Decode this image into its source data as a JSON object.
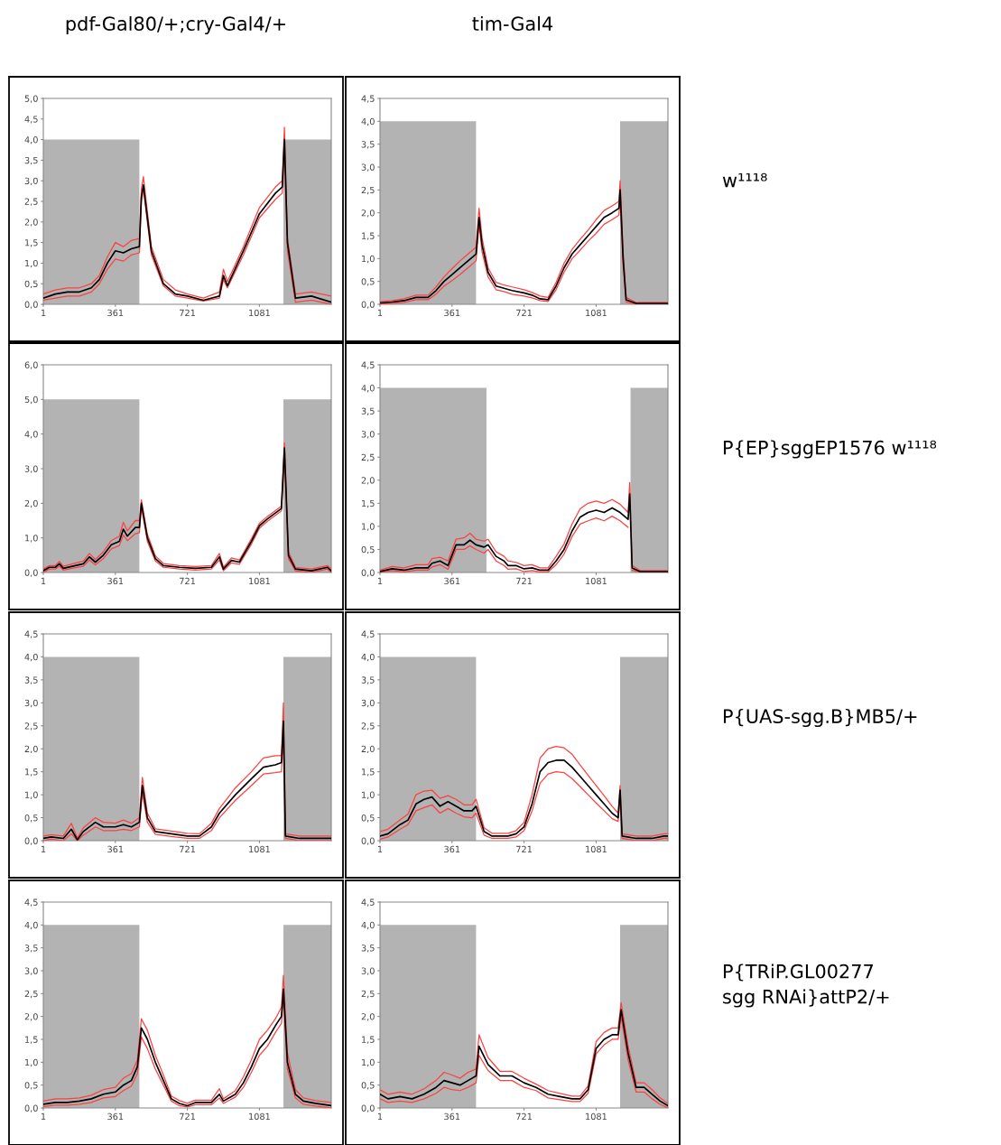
{
  "chart_data": [
    {
      "type": "line",
      "title": "pdf-Gal80/+;cry-Gal4/+",
      "xlim": [
        1,
        1440
      ],
      "xticks": [
        1,
        361,
        721,
        1081
      ],
      "ylim": [
        0,
        5
      ],
      "yticks": [
        {
          "value": 0,
          "label": "0,0"
        },
        {
          "value": 0.5,
          "label": "0,5"
        },
        {
          "value": 1,
          "label": "1,0"
        },
        {
          "value": 1.5,
          "label": "1,5"
        },
        {
          "value": 2,
          "label": "2,0"
        },
        {
          "value": 2.5,
          "label": "2,5"
        },
        {
          "value": 3,
          "label": "3,0"
        },
        {
          "value": 3.5,
          "label": "3,5"
        },
        {
          "value": 4,
          "label": "4,0"
        },
        {
          "value": 4.5,
          "label": "4,5"
        },
        {
          "value": 5,
          "label": "5,0"
        }
      ],
      "x": [
        1,
        61,
        121,
        181,
        241,
        281,
        321,
        361,
        401,
        441,
        481,
        491,
        501,
        541,
        601,
        661,
        721,
        801,
        881,
        901,
        921,
        1001,
        1081,
        1161,
        1195,
        1206,
        1221,
        1261,
        1341,
        1440
      ],
      "series": [
        {
          "type": "area",
          "color": "#b3b3b3",
          "x": [
            1,
            481
          ],
          "values": [
            4,
            4
          ]
        },
        {
          "type": "area",
          "color": "#b3b3b3",
          "x": [
            1201,
            1440
          ],
          "values": [
            4,
            4
          ]
        },
        {
          "color": "#ff4040",
          "values": [
            0.25,
            0.35,
            0.4,
            0.4,
            0.5,
            0.7,
            1.15,
            1.5,
            1.4,
            1.55,
            1.6,
            2.8,
            3.1,
            1.4,
            0.6,
            0.35,
            0.25,
            0.15,
            0.3,
            0.85,
            0.55,
            1.4,
            2.35,
            2.85,
            3.0,
            4.3,
            1.6,
            0.25,
            0.3,
            0.2
          ]
        },
        {
          "color": "#ff4040",
          "values": [
            0.1,
            0.15,
            0.2,
            0.2,
            0.3,
            0.5,
            0.85,
            1.1,
            1.05,
            1.2,
            1.25,
            2.5,
            2.8,
            1.2,
            0.45,
            0.2,
            0.15,
            0.08,
            0.15,
            0.6,
            0.4,
            1.2,
            2.1,
            2.55,
            2.7,
            3.9,
            1.3,
            0.05,
            0.1,
            0.0
          ]
        },
        {
          "color": "#000000",
          "values": [
            0.15,
            0.25,
            0.3,
            0.3,
            0.4,
            0.6,
            1.0,
            1.3,
            1.25,
            1.35,
            1.4,
            2.6,
            2.9,
            1.3,
            0.5,
            0.25,
            0.2,
            0.1,
            0.2,
            0.7,
            0.45,
            1.3,
            2.2,
            2.7,
            2.85,
            4.0,
            1.5,
            0.15,
            0.2,
            0.05
          ]
        }
      ]
    },
    {
      "type": "line",
      "title": "tim-Gal4",
      "annotations": [
        "w¹¹¹⁸"
      ],
      "xlim": [
        1,
        1440
      ],
      "xticks": [
        1,
        361,
        721,
        1081
      ],
      "ylim": [
        0,
        4.5
      ],
      "yticks": [
        {
          "value": 0,
          "label": "0,0"
        },
        {
          "value": 0.5,
          "label": "0,5"
        },
        {
          "value": 1,
          "label": "1,0"
        },
        {
          "value": 1.5,
          "label": "1,5"
        },
        {
          "value": 2,
          "label": "2,0"
        },
        {
          "value": 2.5,
          "label": "2,5"
        },
        {
          "value": 3,
          "label": "3,0"
        },
        {
          "value": 3.5,
          "label": "3,5"
        },
        {
          "value": 4,
          "label": "4,0"
        },
        {
          "value": 4.5,
          "label": "4,5"
        }
      ],
      "x": [
        1,
        61,
        121,
        181,
        241,
        281,
        321,
        361,
        401,
        441,
        481,
        496,
        511,
        541,
        581,
        621,
        661,
        721,
        761,
        801,
        841,
        881,
        921,
        961,
        1001,
        1041,
        1081,
        1121,
        1161,
        1195,
        1201,
        1216,
        1231,
        1281,
        1361,
        1440
      ],
      "series": [
        {
          "type": "area",
          "color": "#b3b3b3",
          "x": [
            1,
            481
          ],
          "values": [
            4,
            4
          ]
        },
        {
          "type": "area",
          "color": "#b3b3b3",
          "x": [
            1201,
            1440
          ],
          "values": [
            4,
            4
          ]
        },
        {
          "color": "#ff4040",
          "values": [
            0.06,
            0.08,
            0.12,
            0.2,
            0.2,
            0.38,
            0.6,
            0.78,
            0.95,
            1.1,
            1.25,
            2.1,
            1.45,
            0.8,
            0.48,
            0.42,
            0.38,
            0.32,
            0.26,
            0.18,
            0.15,
            0.48,
            0.9,
            1.2,
            1.42,
            1.62,
            1.85,
            2.05,
            2.15,
            2.25,
            2.7,
            1.15,
            0.15,
            0.04,
            0.04,
            0.04
          ]
        },
        {
          "color": "#ff4040",
          "values": [
            0.0,
            0.02,
            0.04,
            0.1,
            0.1,
            0.22,
            0.4,
            0.52,
            0.65,
            0.8,
            0.95,
            1.75,
            1.15,
            0.6,
            0.32,
            0.28,
            0.22,
            0.18,
            0.14,
            0.08,
            0.06,
            0.32,
            0.7,
            1.0,
            1.18,
            1.38,
            1.55,
            1.75,
            1.85,
            1.95,
            2.3,
            0.85,
            0.05,
            0.0,
            0.0,
            0.0
          ]
        },
        {
          "color": "#000000",
          "values": [
            0.03,
            0.05,
            0.08,
            0.15,
            0.15,
            0.3,
            0.5,
            0.65,
            0.8,
            0.95,
            1.1,
            1.9,
            1.3,
            0.7,
            0.4,
            0.35,
            0.3,
            0.25,
            0.2,
            0.12,
            0.1,
            0.4,
            0.8,
            1.1,
            1.3,
            1.5,
            1.7,
            1.9,
            2.0,
            2.1,
            2.5,
            1.0,
            0.1,
            0.02,
            0.02,
            0.02
          ]
        }
      ]
    },
    {
      "type": "line",
      "xlim": [
        1,
        1440
      ],
      "xticks": [
        1,
        361,
        721,
        1081
      ],
      "ylim": [
        0,
        6
      ],
      "yticks": [
        {
          "value": 0,
          "label": "0,0"
        },
        {
          "value": 1,
          "label": "1,0"
        },
        {
          "value": 2,
          "label": "2,0"
        },
        {
          "value": 3,
          "label": "3,0"
        },
        {
          "value": 4,
          "label": "4,0"
        },
        {
          "value": 5,
          "label": "5,0"
        },
        {
          "value": 6,
          "label": "6,0"
        }
      ],
      "x": [
        1,
        31,
        61,
        81,
        101,
        161,
        201,
        231,
        261,
        301,
        341,
        381,
        401,
        421,
        461,
        481,
        491,
        521,
        561,
        601,
        681,
        761,
        841,
        881,
        901,
        941,
        981,
        1041,
        1081,
        1121,
        1191,
        1206,
        1226,
        1261,
        1341,
        1421,
        1440
      ],
      "series": [
        {
          "type": "area",
          "color": "#b3b3b3",
          "x": [
            1,
            481
          ],
          "values": [
            5,
            5
          ]
        },
        {
          "type": "area",
          "color": "#b3b3b3",
          "x": [
            1201,
            1440
          ],
          "values": [
            5,
            5
          ]
        },
        {
          "color": "#ff4040",
          "values": [
            0.1,
            0.2,
            0.2,
            0.32,
            0.18,
            0.27,
            0.33,
            0.55,
            0.38,
            0.6,
            0.92,
            1.05,
            1.45,
            1.2,
            1.5,
            1.5,
            2.1,
            1.1,
            0.48,
            0.26,
            0.2,
            0.17,
            0.2,
            0.55,
            0.15,
            0.42,
            0.36,
            0.98,
            1.42,
            1.62,
            1.92,
            3.75,
            0.6,
            0.15,
            0.1,
            0.2,
            0.1
          ]
        },
        {
          "color": "#ff4040",
          "values": [
            0.0,
            0.1,
            0.1,
            0.18,
            0.07,
            0.14,
            0.18,
            0.36,
            0.22,
            0.4,
            0.68,
            0.78,
            1.08,
            0.92,
            1.12,
            1.15,
            1.9,
            0.9,
            0.33,
            0.15,
            0.1,
            0.07,
            0.1,
            0.36,
            0.05,
            0.28,
            0.24,
            0.82,
            1.28,
            1.48,
            1.78,
            3.45,
            0.4,
            0.05,
            0.0,
            0.1,
            0.0
          ]
        },
        {
          "color": "#000000",
          "values": [
            0.05,
            0.15,
            0.15,
            0.25,
            0.12,
            0.2,
            0.25,
            0.45,
            0.3,
            0.5,
            0.8,
            0.9,
            1.25,
            1.05,
            1.3,
            1.3,
            2.0,
            1.0,
            0.4,
            0.2,
            0.15,
            0.12,
            0.15,
            0.45,
            0.1,
            0.35,
            0.3,
            0.9,
            1.35,
            1.55,
            1.85,
            3.6,
            0.5,
            0.1,
            0.05,
            0.15,
            0.05
          ]
        }
      ]
    },
    {
      "type": "line",
      "annotations": [
        "P{EP}sggEP1576 w¹¹¹⁸"
      ],
      "xlim": [
        1,
        1440
      ],
      "xticks": [
        1,
        361,
        721,
        1081
      ],
      "ylim": [
        0,
        4.5
      ],
      "yticks": [
        {
          "value": 0,
          "label": "0,0"
        },
        {
          "value": 0.5,
          "label": "0,5"
        },
        {
          "value": 1,
          "label": "1,0"
        },
        {
          "value": 1.5,
          "label": "1,5"
        },
        {
          "value": 2,
          "label": "2,0"
        },
        {
          "value": 2.5,
          "label": "2,5"
        },
        {
          "value": 3,
          "label": "3,0"
        },
        {
          "value": 3.5,
          "label": "3,5"
        },
        {
          "value": 4,
          "label": "4,0"
        },
        {
          "value": 4.5,
          "label": "4,5"
        }
      ],
      "x": [
        1,
        61,
        121,
        181,
        241,
        261,
        301,
        341,
        381,
        421,
        451,
        481,
        521,
        541,
        581,
        621,
        641,
        681,
        721,
        761,
        801,
        841,
        881,
        921,
        961,
        1001,
        1041,
        1081,
        1121,
        1161,
        1201,
        1241,
        1249,
        1261,
        1301,
        1361,
        1440
      ],
      "series": [
        {
          "type": "area",
          "color": "#b3b3b3",
          "x": [
            1,
            533
          ],
          "values": [
            4,
            4
          ]
        },
        {
          "type": "area",
          "color": "#b3b3b3",
          "x": [
            1253,
            1440
          ],
          "values": [
            4,
            4
          ]
        },
        {
          "color": "#ff4040",
          "values": [
            0.05,
            0.13,
            0.1,
            0.17,
            0.17,
            0.3,
            0.33,
            0.25,
            0.72,
            0.75,
            0.85,
            0.72,
            0.68,
            0.72,
            0.45,
            0.35,
            0.25,
            0.22,
            0.15,
            0.17,
            0.1,
            0.1,
            0.35,
            0.62,
            1.05,
            1.38,
            1.5,
            1.55,
            1.5,
            1.58,
            1.48,
            1.3,
            1.95,
            0.15,
            0.04,
            0.04,
            0.04
          ]
        },
        {
          "color": "#ff4040",
          "values": [
            0.0,
            0.04,
            0.01,
            0.05,
            0.05,
            0.12,
            0.17,
            0.07,
            0.5,
            0.5,
            0.58,
            0.5,
            0.42,
            0.5,
            0.25,
            0.15,
            0.07,
            0.08,
            0.02,
            0.04,
            0.01,
            0.01,
            0.17,
            0.4,
            0.78,
            1.05,
            1.12,
            1.18,
            1.12,
            1.22,
            1.12,
            0.98,
            null,
            0.05,
            0.0,
            0.0,
            0.0
          ]
        },
        {
          "color": "#000000",
          "values": [
            0.02,
            0.08,
            0.05,
            0.1,
            0.1,
            0.2,
            0.25,
            0.15,
            0.6,
            0.6,
            0.7,
            0.6,
            0.55,
            0.6,
            0.35,
            0.25,
            0.15,
            0.15,
            0.08,
            0.1,
            0.05,
            0.05,
            0.25,
            0.5,
            0.9,
            1.2,
            1.3,
            1.35,
            1.3,
            1.4,
            1.3,
            1.15,
            1.7,
            0.1,
            0.02,
            0.02,
            0.02
          ]
        }
      ]
    },
    {
      "type": "line",
      "xlim": [
        1,
        1440
      ],
      "xticks": [
        1,
        361,
        721,
        1081
      ],
      "ylim": [
        0,
        4.5
      ],
      "yticks": [
        {
          "value": 0,
          "label": "0,0"
        },
        {
          "value": 0.5,
          "label": "0,5"
        },
        {
          "value": 1,
          "label": "1,0"
        },
        {
          "value": 1.5,
          "label": "1,5"
        },
        {
          "value": 2,
          "label": "2,0"
        },
        {
          "value": 2.5,
          "label": "2,5"
        },
        {
          "value": 3,
          "label": "3,0"
        },
        {
          "value": 3.5,
          "label": "3,5"
        },
        {
          "value": 4,
          "label": "4,0"
        },
        {
          "value": 4.5,
          "label": "4,5"
        }
      ],
      "x": [
        1,
        41,
        101,
        141,
        171,
        201,
        261,
        301,
        361,
        401,
        441,
        481,
        496,
        521,
        561,
        641,
        721,
        781,
        841,
        881,
        961,
        1041,
        1101,
        1161,
        1191,
        1201,
        1211,
        1281,
        1361,
        1440
      ],
      "series": [
        {
          "type": "area",
          "color": "#b3b3b3",
          "x": [
            1,
            481
          ],
          "values": [
            4,
            4
          ]
        },
        {
          "type": "area",
          "color": "#b3b3b3",
          "x": [
            1201,
            1440
          ],
          "values": [
            4,
            4
          ]
        },
        {
          "color": "#ff4040",
          "values": [
            0.1,
            0.13,
            0.1,
            0.38,
            0.06,
            0.28,
            0.5,
            0.4,
            0.38,
            0.45,
            0.38,
            0.5,
            1.38,
            0.6,
            0.26,
            0.21,
            0.16,
            0.15,
            0.38,
            0.7,
            1.15,
            1.5,
            1.8,
            1.85,
            1.85,
            3.0,
            0.15,
            0.1,
            0.1,
            0.1
          ]
        },
        {
          "color": "#ff4040",
          "values": [
            0.0,
            0.03,
            0.0,
            0.15,
            0.0,
            0.12,
            0.3,
            0.22,
            0.22,
            0.25,
            0.22,
            0.3,
            1.05,
            0.4,
            0.14,
            0.09,
            0.05,
            0.05,
            0.22,
            0.5,
            0.88,
            1.2,
            1.45,
            1.48,
            1.5,
            2.2,
            0.05,
            0.0,
            0.0,
            0.0
          ]
        },
        {
          "color": "#000000",
          "values": [
            0.05,
            0.08,
            0.05,
            0.25,
            0.02,
            0.2,
            0.4,
            0.3,
            0.3,
            0.35,
            0.3,
            0.4,
            1.2,
            0.5,
            0.2,
            0.15,
            0.1,
            0.1,
            0.3,
            0.6,
            1.0,
            1.35,
            1.6,
            1.65,
            1.7,
            2.6,
            0.1,
            0.05,
            0.05,
            0.05
          ]
        }
      ]
    },
    {
      "type": "line",
      "annotations": [
        "P{UAS-sgg.B}MB5/+"
      ],
      "xlim": [
        1,
        1440
      ],
      "xticks": [
        1,
        361,
        721,
        1081
      ],
      "ylim": [
        0,
        4.5
      ],
      "yticks": [
        {
          "value": 0,
          "label": "0,0"
        },
        {
          "value": 0.5,
          "label": "0,5"
        },
        {
          "value": 1,
          "label": "1,0"
        },
        {
          "value": 1.5,
          "label": "1,5"
        },
        {
          "value": 2,
          "label": "2,0"
        },
        {
          "value": 2.5,
          "label": "2,5"
        },
        {
          "value": 3,
          "label": "3,0"
        },
        {
          "value": 3.5,
          "label": "3,5"
        },
        {
          "value": 4,
          "label": "4,0"
        },
        {
          "value": 4.5,
          "label": "4,5"
        }
      ],
      "x": [
        1,
        41,
        101,
        141,
        181,
        221,
        261,
        301,
        341,
        381,
        421,
        461,
        481,
        521,
        561,
        641,
        681,
        721,
        761,
        801,
        841,
        881,
        921,
        961,
        1001,
        1041,
        1081,
        1121,
        1161,
        1191,
        1201,
        1211,
        1281,
        1361,
        1421,
        1440
      ],
      "series": [
        {
          "type": "area",
          "color": "#b3b3b3",
          "x": [
            1,
            481
          ],
          "values": [
            4,
            4
          ]
        },
        {
          "type": "area",
          "color": "#b3b3b3",
          "x": [
            1201,
            1440
          ],
          "values": [
            4,
            4
          ]
        },
        {
          "color": "#ff4040",
          "values": [
            0.2,
            0.25,
            0.45,
            0.58,
            1.0,
            1.08,
            1.1,
            0.92,
            0.98,
            0.9,
            0.78,
            0.78,
            0.9,
            0.28,
            0.16,
            0.16,
            0.22,
            0.4,
            1.0,
            1.8,
            2.0,
            2.05,
            2.02,
            1.88,
            1.65,
            1.42,
            1.2,
            0.98,
            0.75,
            0.6,
            1.2,
            0.15,
            0.1,
            0.1,
            0.15,
            0.15
          ]
        },
        {
          "color": "#ff4040",
          "values": [
            0.03,
            0.08,
            0.25,
            0.35,
            0.65,
            0.72,
            0.78,
            0.6,
            0.7,
            0.6,
            0.52,
            0.5,
            0.6,
            0.12,
            0.05,
            0.05,
            0.08,
            0.22,
            0.65,
            1.25,
            1.45,
            1.5,
            1.48,
            1.35,
            1.18,
            1.0,
            0.82,
            0.65,
            0.48,
            0.42,
            0.95,
            0.05,
            0.0,
            0.0,
            0.05,
            0.05
          ]
        },
        {
          "color": "#000000",
          "values": [
            0.1,
            0.15,
            0.35,
            0.45,
            0.8,
            0.9,
            0.95,
            0.75,
            0.85,
            0.75,
            0.65,
            0.65,
            0.75,
            0.2,
            0.1,
            0.1,
            0.15,
            0.3,
            0.8,
            1.5,
            1.7,
            1.75,
            1.75,
            1.6,
            1.4,
            1.2,
            1.0,
            0.8,
            0.6,
            0.5,
            1.1,
            0.1,
            0.05,
            0.05,
            0.1,
            0.1
          ]
        }
      ]
    },
    {
      "type": "line",
      "xlim": [
        1,
        1440
      ],
      "xticks": [
        1,
        361,
        721,
        1081
      ],
      "ylim": [
        0,
        4.5
      ],
      "yticks": [
        {
          "value": 0,
          "label": "0,0"
        },
        {
          "value": 0.5,
          "label": "0,5"
        },
        {
          "value": 1,
          "label": "1,0"
        },
        {
          "value": 1.5,
          "label": "1,5"
        },
        {
          "value": 2,
          "label": "2,0"
        },
        {
          "value": 2.5,
          "label": "2,5"
        },
        {
          "value": 3,
          "label": "3,0"
        },
        {
          "value": 3.5,
          "label": "3,5"
        },
        {
          "value": 4,
          "label": "4,0"
        },
        {
          "value": 4.5,
          "label": "4,5"
        }
      ],
      "x": [
        1,
        61,
        121,
        181,
        241,
        301,
        361,
        401,
        441,
        471,
        491,
        521,
        561,
        601,
        641,
        681,
        721,
        761,
        841,
        881,
        901,
        961,
        1001,
        1041,
        1081,
        1121,
        1161,
        1191,
        1201,
        1221,
        1261,
        1301,
        1361,
        1440
      ],
      "series": [
        {
          "type": "area",
          "color": "#b3b3b3",
          "x": [
            1,
            481
          ],
          "values": [
            4,
            4
          ]
        },
        {
          "type": "area",
          "color": "#b3b3b3",
          "x": [
            1201,
            1440
          ],
          "values": [
            4,
            4
          ]
        },
        {
          "color": "#ff4040",
          "values": [
            0.15,
            0.2,
            0.2,
            0.22,
            0.28,
            0.4,
            0.45,
            0.65,
            0.75,
            1.05,
            1.95,
            1.7,
            1.15,
            0.72,
            0.26,
            0.16,
            0.1,
            0.17,
            0.17,
            0.42,
            0.2,
            0.38,
            0.68,
            1.05,
            1.5,
            1.7,
            1.95,
            2.2,
            2.9,
            1.2,
            0.4,
            0.22,
            0.16,
            0.12
          ]
        },
        {
          "color": "#ff4040",
          "values": [
            0.03,
            0.06,
            0.06,
            0.08,
            0.12,
            0.22,
            0.25,
            0.38,
            0.48,
            0.75,
            1.55,
            1.3,
            0.85,
            0.5,
            0.15,
            0.05,
            0.02,
            0.07,
            0.07,
            0.22,
            0.1,
            0.24,
            0.45,
            0.78,
            1.15,
            1.35,
            1.65,
            1.85,
            2.4,
            0.85,
            0.22,
            0.08,
            0.04,
            0.0
          ]
        },
        {
          "color": "#000000",
          "values": [
            0.08,
            0.12,
            0.12,
            0.15,
            0.2,
            0.3,
            0.35,
            0.5,
            0.6,
            0.9,
            1.75,
            1.5,
            1.0,
            0.6,
            0.2,
            0.1,
            0.05,
            0.12,
            0.12,
            0.3,
            0.15,
            0.3,
            0.55,
            0.9,
            1.3,
            1.5,
            1.8,
            2.0,
            2.6,
            1.0,
            0.3,
            0.15,
            0.1,
            0.05
          ]
        }
      ]
    },
    {
      "type": "line",
      "annotations": [
        "P{TRiP.GL00277\nsgg RNAi}attP2/+"
      ],
      "xlim": [
        1,
        1440
      ],
      "xticks": [
        1,
        361,
        721,
        1081
      ],
      "ylim": [
        0,
        4.5
      ],
      "yticks": [
        {
          "value": 0,
          "label": "0,0"
        },
        {
          "value": 0.5,
          "label": "0,5"
        },
        {
          "value": 1,
          "label": "1,0"
        },
        {
          "value": 1.5,
          "label": "1,5"
        },
        {
          "value": 2,
          "label": "2,0"
        },
        {
          "value": 2.5,
          "label": "2,5"
        },
        {
          "value": 3,
          "label": "3,0"
        },
        {
          "value": 3.5,
          "label": "3,5"
        },
        {
          "value": 4,
          "label": "4,0"
        },
        {
          "value": 4.5,
          "label": "4,5"
        }
      ],
      "x": [
        1,
        41,
        101,
        161,
        221,
        281,
        321,
        361,
        401,
        441,
        481,
        496,
        541,
        601,
        661,
        721,
        781,
        841,
        901,
        961,
        1001,
        1041,
        1081,
        1121,
        1161,
        1191,
        1206,
        1241,
        1281,
        1321,
        1361,
        1401,
        1440
      ],
      "series": [
        {
          "type": "area",
          "color": "#b3b3b3",
          "x": [
            1,
            481
          ],
          "values": [
            4,
            4
          ]
        },
        {
          "type": "area",
          "color": "#b3b3b3",
          "x": [
            1201,
            1440
          ],
          "values": [
            4,
            4
          ]
        },
        {
          "color": "#ff4040",
          "values": [
            0.4,
            0.3,
            0.35,
            0.3,
            0.42,
            0.6,
            0.78,
            0.72,
            0.65,
            0.78,
            0.85,
            1.6,
            1.1,
            0.8,
            0.8,
            0.65,
            0.52,
            0.38,
            0.32,
            0.26,
            0.26,
            0.48,
            1.45,
            1.65,
            1.75,
            1.75,
            2.3,
            1.35,
            0.55,
            0.55,
            0.4,
            0.22,
            0.1
          ]
        },
        {
          "color": "#ff4040",
          "values": [
            0.2,
            0.12,
            0.15,
            0.12,
            0.2,
            0.32,
            0.45,
            0.4,
            0.38,
            0.45,
            0.55,
            1.15,
            0.82,
            0.6,
            0.6,
            0.45,
            0.38,
            0.22,
            0.18,
            0.14,
            0.14,
            0.32,
            1.18,
            1.38,
            1.5,
            1.5,
            2.0,
            1.05,
            0.35,
            0.35,
            0.2,
            0.08,
            0.0
          ]
        },
        {
          "color": "#000000",
          "values": [
            0.3,
            0.2,
            0.25,
            0.2,
            0.3,
            0.45,
            0.6,
            0.55,
            0.5,
            0.6,
            0.7,
            1.35,
            0.95,
            0.7,
            0.7,
            0.55,
            0.45,
            0.3,
            0.25,
            0.2,
            0.2,
            0.4,
            1.3,
            1.5,
            1.6,
            1.6,
            2.15,
            1.2,
            0.45,
            0.45,
            0.3,
            0.15,
            0.05
          ]
        }
      ]
    }
  ]
}
